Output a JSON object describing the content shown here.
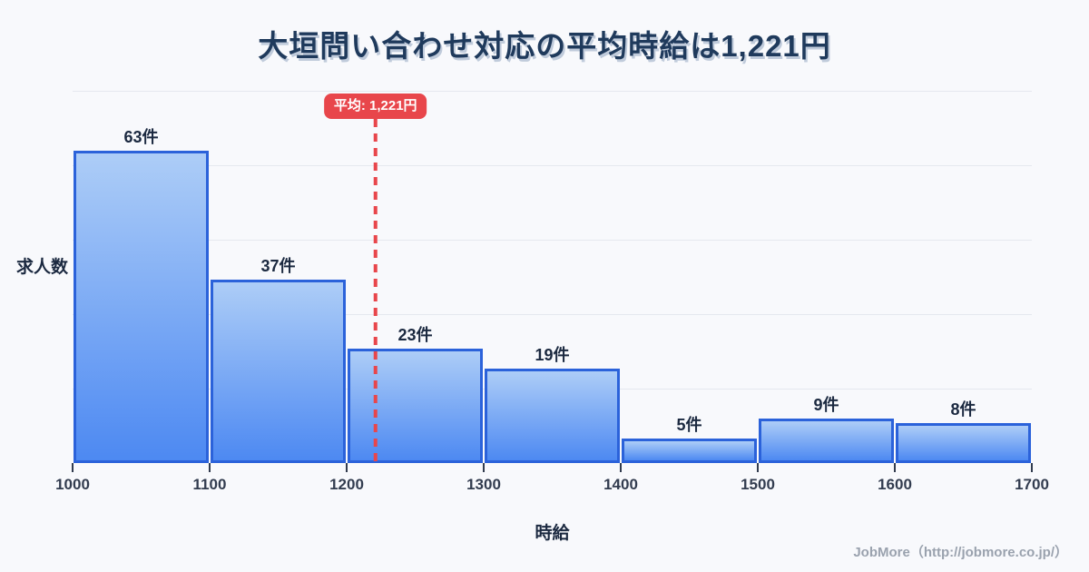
{
  "footer": {
    "credit": "JobMore（http://jobmore.co.jp/）"
  },
  "colors": {
    "background": "#f8f9fc",
    "title_color": "#1f3a5c",
    "label_color": "#1b2940",
    "tick_color": "#323c4f",
    "grid_color": "#e5e8ef",
    "bar_border": "#2b62da",
    "bar_fill_top": "#adcdf7",
    "bar_fill_bottom": "#4d89f2",
    "average_red": "#e8464b",
    "credit_color": "#9aa2ae"
  },
  "chart_data": {
    "type": "bar",
    "title": "大垣問い合わせ対応の平均時給は1,221円",
    "xlabel": "時給",
    "ylabel": "求人数",
    "categories": [
      "1000-1100",
      "1100-1200",
      "1200-1300",
      "1300-1400",
      "1400-1500",
      "1500-1600",
      "1600-1700"
    ],
    "values": [
      63,
      37,
      23,
      19,
      5,
      9,
      8
    ],
    "bar_labels": [
      "63件",
      "37件",
      "23件",
      "19件",
      "5件",
      "9件",
      "8件"
    ],
    "x_ticks": [
      1000,
      1100,
      1200,
      1300,
      1400,
      1500,
      1600,
      1700
    ],
    "xlim": [
      1000,
      1700
    ],
    "ylim": [
      0,
      75
    ],
    "grid": "horizontal",
    "grid_step": 15,
    "y_tick_labels_shown": false,
    "legend_position": "none",
    "average_marker": {
      "value": 1221,
      "label": "平均: 1,221円"
    }
  }
}
